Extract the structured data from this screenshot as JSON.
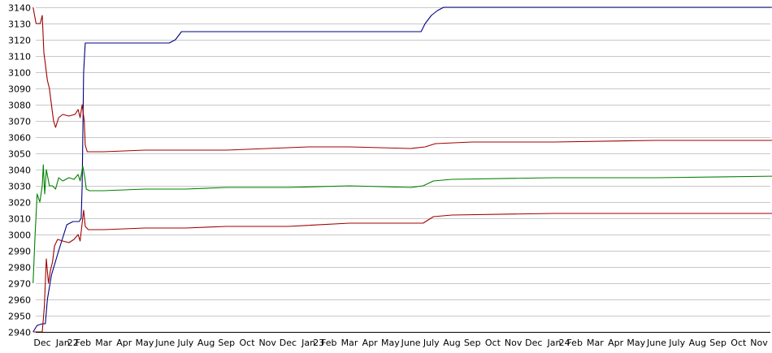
{
  "chart_data": {
    "type": "line",
    "title": "",
    "xlabel": "",
    "ylabel": "",
    "ylim": [
      2940,
      3140
    ],
    "yticks": [
      2940,
      2950,
      2960,
      2970,
      2980,
      2990,
      3000,
      3010,
      3020,
      3030,
      3040,
      3050,
      3060,
      3070,
      3080,
      3090,
      3100,
      3110,
      3120,
      3130,
      3140
    ],
    "xlim": [
      0,
      36
    ],
    "xticks": [
      {
        "x": 0,
        "label": "Dec"
      },
      {
        "x": 1,
        "label": "Jan"
      },
      {
        "x": 1.5,
        "label": "22"
      },
      {
        "x": 2,
        "label": "Feb"
      },
      {
        "x": 3,
        "label": "Mar"
      },
      {
        "x": 4,
        "label": "Apr"
      },
      {
        "x": 5,
        "label": "May"
      },
      {
        "x": 6,
        "label": "June"
      },
      {
        "x": 7,
        "label": "July"
      },
      {
        "x": 8,
        "label": "Aug"
      },
      {
        "x": 9,
        "label": "Sep"
      },
      {
        "x": 10,
        "label": "Oct"
      },
      {
        "x": 11,
        "label": "Nov"
      },
      {
        "x": 12,
        "label": "Dec"
      },
      {
        "x": 13,
        "label": "Jan"
      },
      {
        "x": 13.5,
        "label": "23"
      },
      {
        "x": 14,
        "label": "Feb"
      },
      {
        "x": 15,
        "label": "Mar"
      },
      {
        "x": 16,
        "label": "Apr"
      },
      {
        "x": 17,
        "label": "May"
      },
      {
        "x": 18,
        "label": "June"
      },
      {
        "x": 19,
        "label": "July"
      },
      {
        "x": 20,
        "label": "Aug"
      },
      {
        "x": 21,
        "label": "Sep"
      },
      {
        "x": 22,
        "label": "Oct"
      },
      {
        "x": 23,
        "label": "Nov"
      },
      {
        "x": 24,
        "label": "Dec"
      },
      {
        "x": 25,
        "label": "Jan"
      },
      {
        "x": 25.5,
        "label": "24"
      },
      {
        "x": 26,
        "label": "Feb"
      },
      {
        "x": 27,
        "label": "Mar"
      },
      {
        "x": 28,
        "label": "Apr"
      },
      {
        "x": 29,
        "label": "May"
      },
      {
        "x": 30,
        "label": "June"
      },
      {
        "x": 31,
        "label": "July"
      },
      {
        "x": 32,
        "label": "Aug"
      },
      {
        "x": 33,
        "label": "Sep"
      },
      {
        "x": 34,
        "label": "Oct"
      },
      {
        "x": 35,
        "label": "Nov"
      }
    ],
    "grid": "horizontal",
    "legend": "none",
    "series": [
      {
        "color": "#000080",
        "points": [
          [
            -0.45,
            2940
          ],
          [
            -0.25,
            2944
          ],
          [
            0,
            2945
          ],
          [
            0.15,
            2945
          ],
          [
            0.25,
            2960
          ],
          [
            0.45,
            2975
          ],
          [
            0.8,
            2990
          ],
          [
            1,
            2998
          ],
          [
            1.2,
            3006
          ],
          [
            1.5,
            3008
          ],
          [
            1.8,
            3008
          ],
          [
            1.9,
            3010
          ],
          [
            1.95,
            3030
          ],
          [
            1.98,
            3060
          ],
          [
            2.02,
            3100
          ],
          [
            2.1,
            3118
          ],
          [
            2.5,
            3118
          ],
          [
            6.2,
            3118
          ],
          [
            6.5,
            3120
          ],
          [
            6.8,
            3125
          ],
          [
            7.2,
            3125
          ],
          [
            18.5,
            3125
          ],
          [
            18.7,
            3130
          ],
          [
            19,
            3135
          ],
          [
            19.3,
            3138
          ],
          [
            19.6,
            3140
          ],
          [
            21,
            3140
          ],
          [
            36,
            3140
          ]
        ]
      },
      {
        "color": "#a00000",
        "points": [
          [
            -0.45,
            3140
          ],
          [
            -0.3,
            3130
          ],
          [
            -0.1,
            3130
          ],
          [
            0,
            3135
          ],
          [
            0.08,
            3112
          ],
          [
            0.15,
            3105
          ],
          [
            0.25,
            3095
          ],
          [
            0.35,
            3090
          ],
          [
            0.45,
            3080
          ],
          [
            0.5,
            3075
          ],
          [
            0.55,
            3070
          ],
          [
            0.65,
            3066
          ],
          [
            0.8,
            3072
          ],
          [
            1,
            3074
          ],
          [
            1.3,
            3073
          ],
          [
            1.6,
            3074
          ],
          [
            1.75,
            3077
          ],
          [
            1.85,
            3072
          ],
          [
            1.95,
            3080
          ],
          [
            2.05,
            3070
          ],
          [
            2.1,
            3055
          ],
          [
            2.2,
            3051
          ],
          [
            2.5,
            3051
          ],
          [
            3,
            3051
          ],
          [
            5,
            3052
          ],
          [
            7,
            3052
          ],
          [
            9,
            3052
          ],
          [
            11,
            3053
          ],
          [
            13,
            3054
          ],
          [
            15,
            3054
          ],
          [
            18,
            3053
          ],
          [
            18.7,
            3054
          ],
          [
            19.2,
            3056
          ],
          [
            21,
            3057
          ],
          [
            25,
            3057
          ],
          [
            30,
            3058
          ],
          [
            36,
            3058
          ]
        ]
      },
      {
        "color": "#008000",
        "points": [
          [
            -0.45,
            2970
          ],
          [
            -0.35,
            3000
          ],
          [
            -0.25,
            3025
          ],
          [
            -0.12,
            3020
          ],
          [
            0,
            3030
          ],
          [
            0.05,
            3043
          ],
          [
            0.12,
            3025
          ],
          [
            0.2,
            3040
          ],
          [
            0.35,
            3030
          ],
          [
            0.5,
            3030
          ],
          [
            0.65,
            3028
          ],
          [
            0.8,
            3035
          ],
          [
            1,
            3033
          ],
          [
            1.3,
            3035
          ],
          [
            1.55,
            3034
          ],
          [
            1.75,
            3037
          ],
          [
            1.85,
            3033
          ],
          [
            1.98,
            3042
          ],
          [
            2.08,
            3035
          ],
          [
            2.15,
            3028
          ],
          [
            2.3,
            3027
          ],
          [
            3,
            3027
          ],
          [
            5,
            3028
          ],
          [
            7,
            3028
          ],
          [
            9,
            3029
          ],
          [
            12,
            3029
          ],
          [
            15,
            3030
          ],
          [
            18,
            3029
          ],
          [
            18.6,
            3030
          ],
          [
            19.1,
            3033
          ],
          [
            20,
            3034
          ],
          [
            25,
            3035
          ],
          [
            30,
            3035
          ],
          [
            36,
            3036
          ]
        ]
      },
      {
        "color": "#a00000",
        "points": [
          [
            -0.45,
            2940
          ],
          [
            -0.2,
            2940
          ],
          [
            0,
            2940
          ],
          [
            0.1,
            2955
          ],
          [
            0.2,
            2985
          ],
          [
            0.3,
            2970
          ],
          [
            0.4,
            2978
          ],
          [
            0.5,
            2983
          ],
          [
            0.6,
            2993
          ],
          [
            0.75,
            2997
          ],
          [
            1,
            2996
          ],
          [
            1.3,
            2995
          ],
          [
            1.55,
            2997
          ],
          [
            1.75,
            3000
          ],
          [
            1.85,
            2996
          ],
          [
            1.95,
            3007
          ],
          [
            2.02,
            3015
          ],
          [
            2.1,
            3005
          ],
          [
            2.25,
            3003
          ],
          [
            3,
            3003
          ],
          [
            5,
            3004
          ],
          [
            7,
            3004
          ],
          [
            9,
            3005
          ],
          [
            12,
            3005
          ],
          [
            15,
            3007
          ],
          [
            18,
            3007
          ],
          [
            18.6,
            3007
          ],
          [
            19.1,
            3011
          ],
          [
            20,
            3012
          ],
          [
            25,
            3013
          ],
          [
            30,
            3013
          ],
          [
            36,
            3013
          ]
        ]
      }
    ]
  }
}
